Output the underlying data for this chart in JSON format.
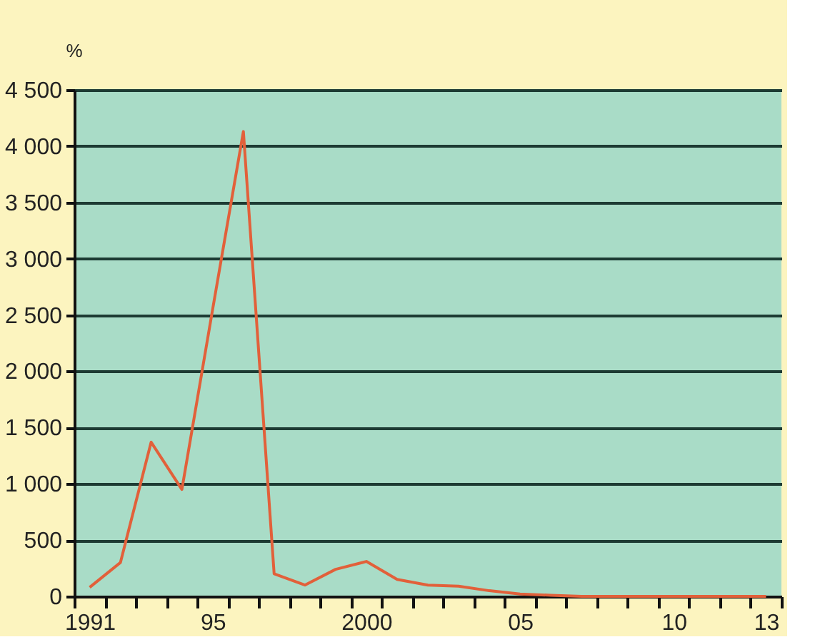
{
  "chart_data": {
    "type": "line",
    "ylabel": "%",
    "categories": [
      "1991",
      null,
      null,
      null,
      "95",
      null,
      null,
      null,
      null,
      "2000",
      null,
      null,
      null,
      null,
      "05",
      null,
      null,
      null,
      null,
      "10",
      null,
      null,
      "13"
    ],
    "series": [
      {
        "color": "#e2603a",
        "values": [
          80,
          300,
          1370,
          950,
          2550,
          4130,
          200,
          100,
          240,
          310,
          150,
          100,
          90,
          50,
          20,
          10,
          0,
          0,
          0,
          0,
          0,
          0,
          0
        ]
      }
    ],
    "ylim": [
      0,
      4500
    ],
    "yticks": [
      {
        "value": 0,
        "label": "0"
      },
      {
        "value": 500,
        "label": "500"
      },
      {
        "value": 1000,
        "label": "1 000"
      },
      {
        "value": 1500,
        "label": "1 500"
      },
      {
        "value": 2000,
        "label": "2 000"
      },
      {
        "value": 2500,
        "label": "2 500"
      },
      {
        "value": 3000,
        "label": "3 000"
      },
      {
        "value": 3500,
        "label": "3 500"
      },
      {
        "value": 4000,
        "label": "4 000"
      },
      {
        "value": 4500,
        "label": "4 500"
      }
    ],
    "grid": "y",
    "legend": false,
    "marker": "none",
    "line_style": "solid"
  }
}
